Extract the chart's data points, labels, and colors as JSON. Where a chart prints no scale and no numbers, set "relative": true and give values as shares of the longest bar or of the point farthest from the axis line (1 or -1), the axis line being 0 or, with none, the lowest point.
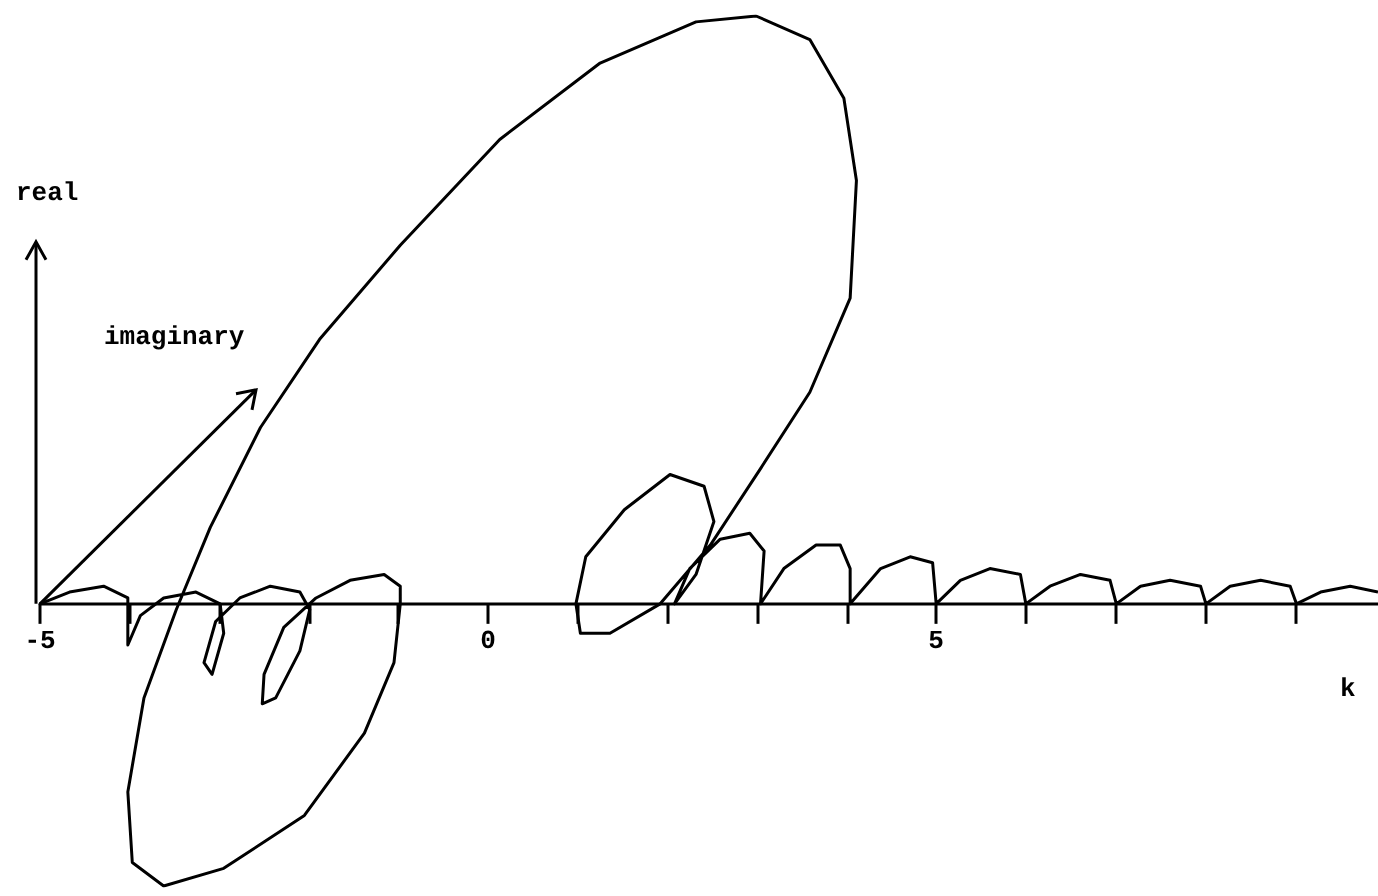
{
  "chart_data": {
    "type": "line",
    "relative": true,
    "xlabel": "k",
    "ylabel": "real",
    "annotations": [
      "imaginary"
    ],
    "tick_labels": "x",
    "grid": false,
    "xlim": [
      -5,
      9.93
    ],
    "xticks": [
      -5,
      {
        "value": -4,
        "label": null
      },
      {
        "value": -3,
        "label": null
      },
      {
        "value": -2,
        "label": null
      },
      {
        "value": -1,
        "label": null
      },
      0,
      {
        "value": 1,
        "label": null
      },
      {
        "value": 2,
        "label": null
      },
      {
        "value": 3,
        "label": null
      },
      {
        "value": 4,
        "label": null
      },
      5,
      {
        "value": 6,
        "label": null
      },
      {
        "value": 7,
        "label": null
      },
      {
        "value": 8,
        "label": null
      },
      {
        "value": 9,
        "label": null
      }
    ],
    "series": [
      {
        "color": "#000000",
        "x": [
          -5.0,
          -4.67,
          -4.29,
          -4.02,
          -4.02,
          -3.88,
          -3.62,
          -3.26,
          -2.99,
          -2.95,
          -3.08,
          -3.17,
          -3.04,
          -2.77,
          -2.43,
          -2.1,
          -1.99,
          -2.1,
          -2.37,
          -2.52,
          -2.5,
          -2.28,
          -1.92,
          -1.54,
          -1.16,
          -0.98,
          -0.98,
          -1.05,
          -1.38,
          -2.05,
          -2.95,
          -3.62,
          -3.97,
          -4.02,
          -3.84,
          -3.48,
          -3.1,
          -2.54,
          -1.88,
          -0.98,
          0.13,
          1.25,
          2.32,
          2.99,
          3.59,
          3.97,
          4.11,
          4.04,
          3.59,
          3.04,
          2.48,
          1.92,
          1.36,
          1.03,
          0.98,
          1.09,
          1.52,
          2.03,
          2.41,
          2.52,
          2.32,
          2.08,
          2.25,
          2.59,
          2.92,
          3.08,
          3.04,
          3.3,
          3.66,
          3.93,
          4.04,
          4.04,
          4.38,
          4.71,
          4.96,
          5.0,
          5.27,
          5.6,
          5.94,
          6.0,
          6.27,
          6.61,
          6.94,
          7.01,
          7.28,
          7.61,
          7.95,
          8.01,
          8.28,
          8.62,
          8.95,
          9.02,
          9.29,
          9.62,
          9.93
        ],
        "values": [
          0,
          0.02,
          0.03,
          0.01,
          -0.07,
          -0.02,
          0.01,
          0.02,
          0,
          -0.05,
          -0.12,
          -0.1,
          -0.03,
          0.01,
          0.03,
          0.02,
          -0.01,
          -0.08,
          -0.16,
          -0.17,
          -0.12,
          -0.04,
          0.01,
          0.04,
          0.05,
          0.03,
          0,
          -0.1,
          -0.22,
          -0.36,
          -0.45,
          -0.48,
          -0.44,
          -0.32,
          -0.16,
          -0.01,
          0.13,
          0.3,
          0.45,
          0.61,
          0.79,
          0.92,
          0.99,
          1.0,
          0.96,
          0.86,
          0.72,
          0.52,
          0.36,
          0.23,
          0.1,
          0,
          -0.05,
          -0.05,
          0,
          0.08,
          0.16,
          0.22,
          0.2,
          0.14,
          0.05,
          0,
          0.06,
          0.11,
          0.12,
          0.09,
          0,
          0.06,
          0.1,
          0.1,
          0.06,
          0,
          0.06,
          0.08,
          0.07,
          0,
          0.04,
          0.06,
          0.05,
          0,
          0.03,
          0.05,
          0.04,
          0,
          0.03,
          0.04,
          0.03,
          0,
          0.03,
          0.04,
          0.03,
          0,
          0.02,
          0.03,
          0.02
        ]
      }
    ]
  }
}
